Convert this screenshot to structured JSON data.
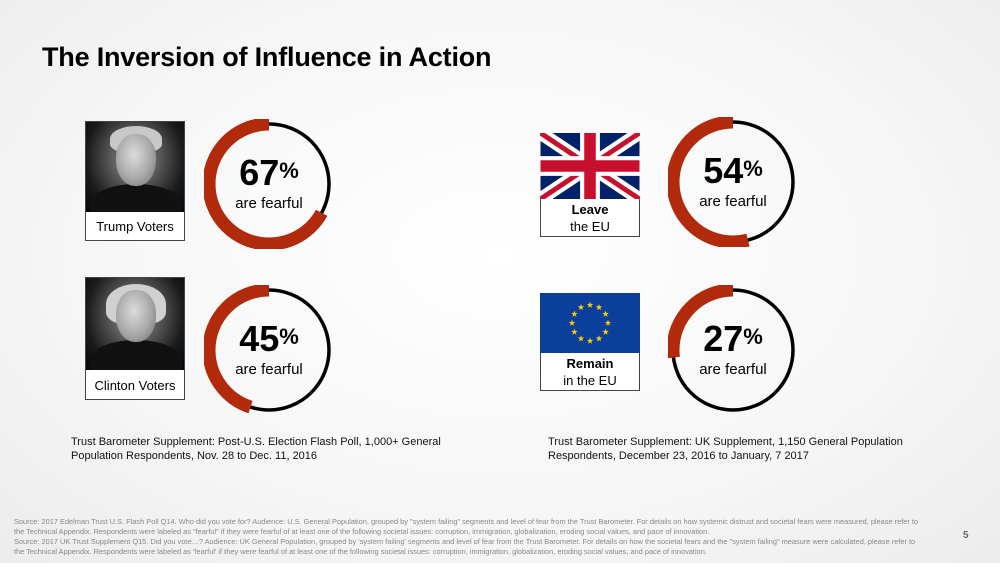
{
  "title": "The Inversion of Influence in Action",
  "chart_data": {
    "type": "pie",
    "unit": "%",
    "items": [
      {
        "label": "Trump Voters",
        "value": 67,
        "caption": "are fearful"
      },
      {
        "label": "Clinton Voters",
        "value": 45,
        "caption": "are fearful"
      },
      {
        "label": "Leave the EU",
        "value": 54,
        "caption": "are fearful"
      },
      {
        "label": "Remain in the EU",
        "value": 27,
        "caption": "are fearful"
      }
    ],
    "colors": {
      "filled": "#b22a0c",
      "empty": "#000000"
    }
  },
  "groups": {
    "trump": {
      "caption": "Trump Voters",
      "icon": "trump-portrait-icon"
    },
    "clinton": {
      "caption": "Clinton Voters",
      "icon": "clinton-portrait-icon"
    },
    "leave": {
      "line1": "Leave",
      "line2": "the EU",
      "icon": "uk-flag-icon"
    },
    "remain": {
      "line1": "Remain",
      "line2": "in the EU",
      "icon": "eu-flag-icon"
    }
  },
  "sources": {
    "us": "Trust Barometer Supplement: Post-U.S. Election Flash Poll,   1,000+ General Population Respondents, Nov. 28 to Dec. 11, 2016",
    "uk": "Trust Barometer Supplement: UK Supplement, 1,150 General Population Respondents, December 23, 2016 to January, 7 2017"
  },
  "footer": {
    "line1": "Source: 2017 Edelman Trust U.S. Flash Poll Q14. Who did you vote for? Audience: U.S. General Population, grouped by \"system failing\" segments and level of fear from the Trust Barometer. For details on how systemic distrust and societal fears were measured, please refer to the Technical Appendix. Respondents were labeled as \"fearful\" if they were fearful of at least one of the following societal issues: corruption, immigration, globalization, eroding social values, and pace of innovation.",
    "line2": "Source: 2017 UK Trust Supplement Q15. Did you vote…? Audience: UK General Population, grouped by 'system failing' segments and level of fear from the Trust Barometer. For details on  how the societal fears  and the \"system failing\" measure were calculated, please refer to the Technical Appendix. Respondents were labeled as 'fearful' if they were fearful of at least one of the following societal issues: corruption, immigration, globalization, eroding social values, and pace of innovation."
  },
  "page_number": "5"
}
